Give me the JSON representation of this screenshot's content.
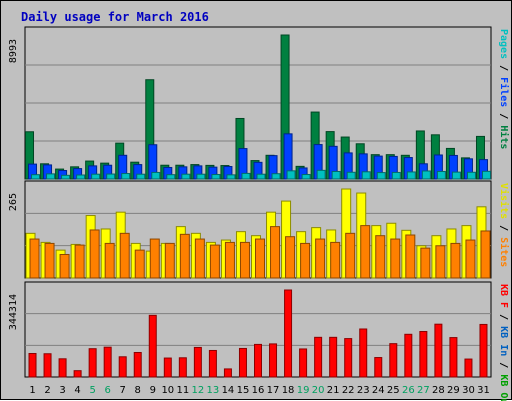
{
  "chart_data": {
    "type": "bar",
    "title": "Daily usage for March 2016",
    "categories": [
      "1",
      "2",
      "3",
      "4",
      "5",
      "6",
      "7",
      "8",
      "9",
      "10",
      "11",
      "12",
      "13",
      "14",
      "15",
      "16",
      "17",
      "18",
      "19",
      "20",
      "21",
      "22",
      "23",
      "24",
      "25",
      "26",
      "27",
      "28",
      "29",
      "30",
      "31"
    ],
    "weekend_days": [
      "5",
      "6",
      "12",
      "13",
      "19",
      "20",
      "26",
      "27"
    ],
    "panels": [
      {
        "max_label": "8993",
        "ymax": 8993,
        "legend_parts": [
          {
            "text": "Pages",
            "color": "#00c0c0"
          },
          {
            "text": " / ",
            "color": "#000000"
          },
          {
            "text": "Files",
            "color": "#0040ff"
          },
          {
            "text": " / ",
            "color": "#000000"
          },
          {
            "text": "Hits",
            "color": "#008040"
          }
        ],
        "series": [
          {
            "name": "Hits",
            "color": "#008040",
            "values": [
              2950,
              950,
              620,
              760,
              1120,
              990,
              2240,
              1050,
              6200,
              860,
              860,
              900,
              850,
              840,
              3780,
              1150,
              1480,
              8993,
              790,
              4180,
              2960,
              2620,
              2200,
              1520,
              1520,
              1480,
              3000,
              2760,
              1910,
              1320,
              2660
            ]
          },
          {
            "name": "Files",
            "color": "#0040ff",
            "values": [
              930,
              880,
              530,
              650,
              820,
              860,
              1480,
              900,
              2140,
              720,
              760,
              820,
              740,
              780,
              1900,
              1040,
              1460,
              2820,
              690,
              2150,
              2040,
              1630,
              1570,
              1430,
              1410,
              1340,
              950,
              1500,
              1470,
              1260,
              1210
            ]
          },
          {
            "name": "Pages",
            "color": "#00c0c0",
            "values": [
              270,
              320,
              230,
              250,
              300,
              310,
              340,
              300,
              410,
              270,
              300,
              300,
              280,
              260,
              350,
              300,
              330,
              510,
              280,
              540,
              470,
              420,
              450,
              400,
              410,
              440,
              500,
              470,
              430,
              420,
              480
            ]
          }
        ]
      },
      {
        "max_label": "265",
        "ymax": 265,
        "legend_parts": [
          {
            "text": "Visits",
            "color": "#e0e000"
          },
          {
            "text": " / ",
            "color": "#000000"
          },
          {
            "text": "Sites",
            "color": "#ff8000"
          }
        ],
        "series": [
          {
            "name": "Visits",
            "color": "#ffff00",
            "values": [
              133,
              106,
              83,
              100,
              186,
              146,
              196,
              103,
              80,
              103,
              153,
              133,
              106,
              113,
              138,
              126,
              196,
              229,
              138,
              150,
              143,
              265,
              253,
              156,
              163,
              142,
              96,
              126,
              146,
              156,
              212
            ]
          },
          {
            "name": "Sites",
            "color": "#ff8000",
            "values": [
              116,
              103,
              70,
              98,
              143,
              103,
              133,
              83,
              116,
              103,
              130,
              116,
              98,
              106,
              106,
              116,
              153,
              123,
              103,
              116,
              106,
              133,
              156,
              126,
              116,
              128,
              89,
              96,
              103,
              113,
              140
            ]
          }
        ]
      },
      {
        "max_label": "344314",
        "ymax": 344314,
        "legend_parts": [
          {
            "text": "KB F",
            "color": "#ff0000"
          },
          {
            "text": " / ",
            "color": "#000000"
          },
          {
            "text": "KB In",
            "color": "#0060c0"
          },
          {
            "text": " / ",
            "color": "#000000"
          },
          {
            "text": "KB Out",
            "color": "#00a000"
          }
        ],
        "series": [
          {
            "name": "KB F",
            "color": "#ff0000",
            "values": [
              93000,
              92000,
              72000,
              25000,
              112000,
              118000,
              80000,
              97000,
              244000,
              75000,
              76000,
              117000,
              105000,
              32000,
              113000,
              129000,
              131000,
              344314,
              111000,
              157000,
              157000,
              152000,
              190000,
              77000,
              132000,
              169000,
              180000,
              209000,
              156000,
              71000,
              208000
            ]
          }
        ]
      }
    ]
  }
}
